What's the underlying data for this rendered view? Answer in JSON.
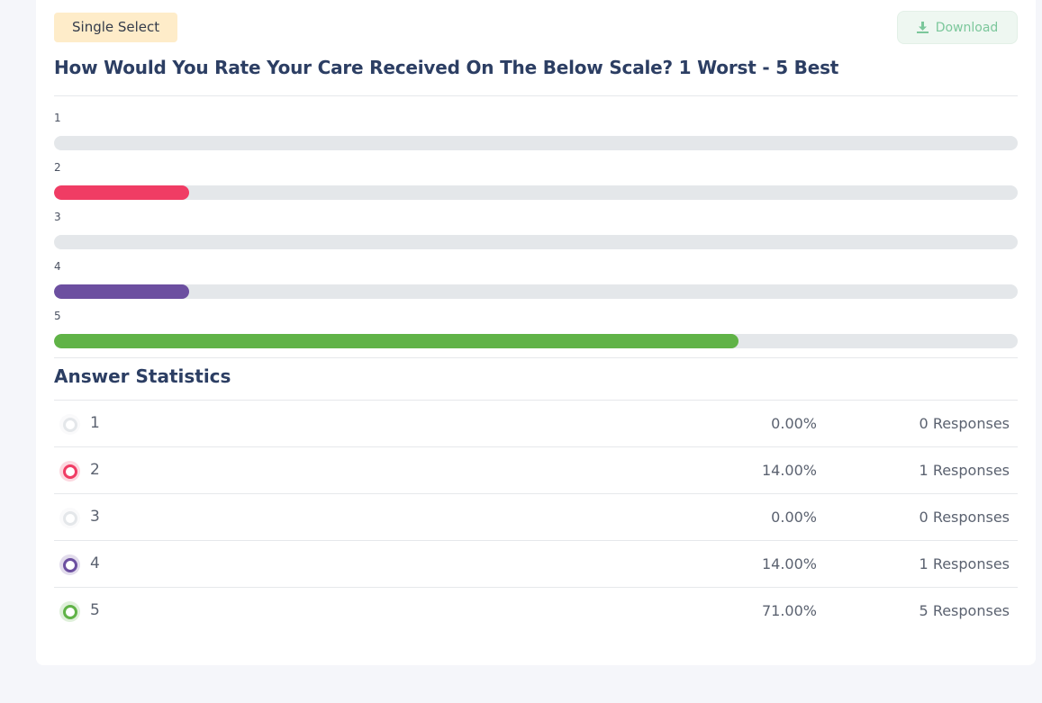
{
  "header": {
    "question_type_badge": "Single Select",
    "download_label": "Download",
    "download_icon": "download-icon",
    "question_title": "How Would You Rate Your Care Received On The Below Scale? 1 Worst - 5 Best"
  },
  "colors": {
    "track": "#e4e7ea",
    "empty_option": "#e4e7ea",
    "option_2": "#f03c64",
    "option_4": "#6c4fa0",
    "option_5": "#60b347"
  },
  "bars": [
    {
      "label": "1",
      "percent": 0,
      "color": "#e4e7ea"
    },
    {
      "label": "2",
      "percent": 14,
      "color": "#f03c64"
    },
    {
      "label": "3",
      "percent": 0,
      "color": "#e4e7ea"
    },
    {
      "label": "4",
      "percent": 14,
      "color": "#6c4fa0"
    },
    {
      "label": "5",
      "percent": 71,
      "color": "#60b347"
    }
  ],
  "statistics": {
    "title": "Answer Statistics",
    "rows": [
      {
        "label": "1",
        "percent": "0.00%",
        "responses": "0 Responses",
        "color": "#e4e7ea"
      },
      {
        "label": "2",
        "percent": "14.00%",
        "responses": "1 Responses",
        "color": "#f03c64"
      },
      {
        "label": "3",
        "percent": "0.00%",
        "responses": "0 Responses",
        "color": "#e4e7ea"
      },
      {
        "label": "4",
        "percent": "14.00%",
        "responses": "1 Responses",
        "color": "#6c4fa0"
      },
      {
        "label": "5",
        "percent": "71.00%",
        "responses": "5 Responses",
        "color": "#60b347"
      }
    ]
  }
}
